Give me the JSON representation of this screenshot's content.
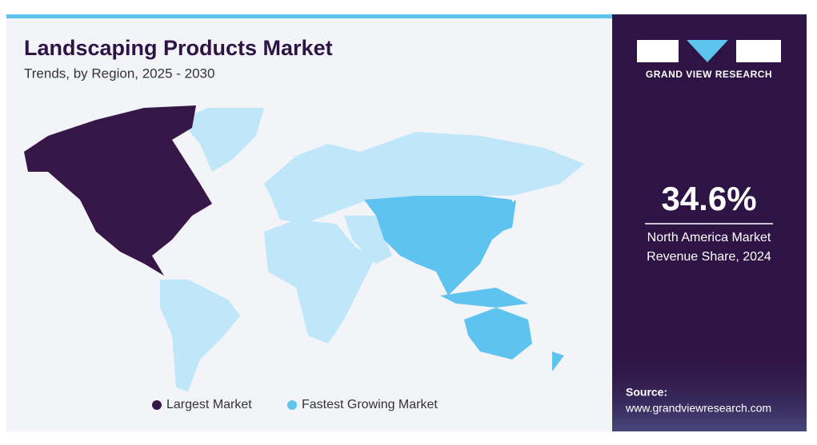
{
  "header": {
    "title": "Landscaping Products Market",
    "subtitle": "Trends, by Region, 2025 - 2030"
  },
  "brand": "GRAND VIEW RESEARCH",
  "stat": {
    "value": "34.6%",
    "caption_line1": "North America Market",
    "caption_line2": "Revenue Share, 2024"
  },
  "legend": [
    {
      "label": "Largest Market",
      "color": "#361748"
    },
    {
      "label": "Fastest Growing Market",
      "color": "#5ec3ee"
    }
  ],
  "other_color": "#bfe7f9",
  "source": {
    "label": "Source:",
    "url": "www.grandviewresearch.com"
  }
}
